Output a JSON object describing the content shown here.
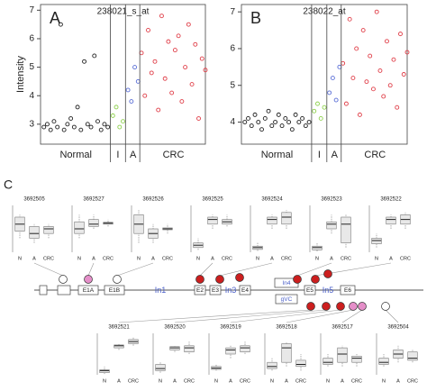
{
  "chart_data": [
    {
      "type": "scatter",
      "panel": "A",
      "title": "238021_s_at",
      "ylabel": "Intensity",
      "xlim": [
        0,
        49
      ],
      "ylim": [
        2.3,
        7.2
      ],
      "yticks": [
        3,
        4,
        5,
        6,
        7
      ],
      "series": [
        {
          "name": "Normal",
          "color": "#222222",
          "x": [
            1,
            2,
            3,
            4,
            5,
            6,
            7,
            8,
            9,
            10,
            11,
            12,
            13,
            14,
            15,
            16,
            17,
            18,
            19,
            20
          ],
          "values": [
            2.9,
            3.0,
            2.8,
            3.1,
            2.9,
            6.5,
            2.8,
            3.0,
            3.2,
            2.9,
            3.6,
            2.8,
            5.2,
            3.0,
            2.9,
            5.4,
            3.1,
            2.8,
            3.0,
            2.9
          ]
        },
        {
          "name": "I",
          "color": "#8fd14f",
          "x": [
            21.5,
            22.5,
            23.5,
            24.5
          ],
          "values": [
            3.3,
            3.6,
            2.9,
            3.1
          ]
        },
        {
          "name": "A",
          "color": "#5b6fd6",
          "x": [
            26,
            27,
            28,
            29
          ],
          "values": [
            4.2,
            3.8,
            5.0,
            4.5
          ]
        },
        {
          "name": "CRC",
          "color": "#e0404a",
          "x": [
            30,
            31,
            32,
            33,
            34,
            35,
            36,
            37,
            38,
            39,
            40,
            41,
            42,
            43,
            44,
            45,
            46,
            47,
            48,
            49
          ],
          "values": [
            5.5,
            4.0,
            6.3,
            4.8,
            5.2,
            3.5,
            6.8,
            4.6,
            5.9,
            4.1,
            5.6,
            6.1,
            3.8,
            5.0,
            6.5,
            4.4,
            5.8,
            3.2,
            5.3,
            4.9
          ]
        }
      ]
    },
    {
      "type": "scatter",
      "panel": "B",
      "title": "238022_at",
      "xlim": [
        0,
        49
      ],
      "ylim": [
        3.4,
        7.2
      ],
      "yticks": [
        4,
        5,
        6,
        7
      ],
      "series": [
        {
          "name": "Normal",
          "color": "#222222",
          "x": [
            1,
            2,
            3,
            4,
            5,
            6,
            7,
            8,
            9,
            10,
            11,
            12,
            13,
            14,
            15,
            16,
            17,
            18,
            19,
            20
          ],
          "values": [
            4.0,
            4.1,
            3.9,
            4.2,
            4.0,
            3.8,
            4.1,
            4.3,
            3.9,
            4.0,
            4.2,
            3.9,
            4.1,
            4.0,
            3.8,
            4.2,
            4.0,
            4.1,
            3.9,
            4.0
          ]
        },
        {
          "name": "I",
          "color": "#8fd14f",
          "x": [
            21.5,
            22.5,
            23.5,
            24.5
          ],
          "values": [
            4.3,
            4.5,
            4.1,
            4.4
          ]
        },
        {
          "name": "A",
          "color": "#5b6fd6",
          "x": [
            26,
            27,
            28,
            29
          ],
          "values": [
            4.8,
            5.2,
            4.6,
            5.5
          ]
        },
        {
          "name": "CRC",
          "color": "#e0404a",
          "x": [
            30,
            31,
            32,
            33,
            34,
            35,
            36,
            37,
            38,
            39,
            40,
            41,
            42,
            43,
            44,
            45,
            46,
            47,
            48,
            49
          ],
          "values": [
            5.6,
            4.5,
            6.8,
            5.2,
            6.0,
            4.2,
            6.5,
            5.1,
            5.8,
            4.9,
            7.0,
            5.4,
            4.7,
            6.2,
            5.0,
            5.7,
            4.4,
            6.4,
            5.3,
            5.9
          ]
        }
      ]
    },
    {
      "type": "box",
      "title": "3692505",
      "categories": [
        "N",
        "A",
        "CRC"
      ],
      "ylim": [
        0,
        10
      ],
      "boxes": [
        [
          3,
          4.5,
          6,
          7.5,
          8
        ],
        [
          2,
          3,
          4,
          5.5,
          6
        ],
        [
          3,
          4,
          5,
          5.5,
          6
        ]
      ]
    },
    {
      "type": "box",
      "title": "3692527",
      "categories": [
        "N",
        "A",
        "CRC"
      ],
      "ylim": [
        0,
        10
      ],
      "boxes": [
        [
          3,
          4,
          5,
          6.5,
          8
        ],
        [
          5,
          5.5,
          6,
          7,
          8
        ],
        [
          5.5,
          6,
          6.2,
          6.4,
          7
        ]
      ]
    },
    {
      "type": "box",
      "title": "3692526",
      "categories": [
        "N",
        "A",
        "CRC"
      ],
      "ylim": [
        0,
        10
      ],
      "boxes": [
        [
          2,
          4,
          6,
          8,
          9
        ],
        [
          2,
          3,
          4,
          5,
          6
        ],
        [
          4,
          4.8,
          5,
          5.2,
          6
        ]
      ]
    },
    {
      "type": "box",
      "title": "3692525",
      "categories": [
        "N",
        "A",
        "CRC"
      ],
      "ylim": [
        0,
        10
      ],
      "boxes": [
        [
          0.5,
          1,
          1.5,
          2,
          3
        ],
        [
          5,
          6,
          7,
          7.5,
          8
        ],
        [
          5.5,
          6,
          6.5,
          7,
          8
        ]
      ]
    },
    {
      "type": "box",
      "title": "3692524",
      "categories": [
        "N",
        "A",
        "CRC"
      ],
      "ylim": [
        0,
        10
      ],
      "boxes": [
        [
          0.3,
          0.6,
          1,
          1.3,
          2
        ],
        [
          5,
          6,
          7,
          7.5,
          8
        ],
        [
          5,
          6,
          7.5,
          8.5,
          9
        ]
      ]
    },
    {
      "type": "box",
      "title": "3692523",
      "categories": [
        "N",
        "A",
        "CRC"
      ],
      "ylim": [
        0,
        10
      ],
      "boxes": [
        [
          0.2,
          0.5,
          1,
          1.3,
          2
        ],
        [
          4,
          5,
          6,
          6.5,
          8
        ],
        [
          1,
          2,
          6,
          7.5,
          8
        ]
      ]
    },
    {
      "type": "box",
      "title": "3692522",
      "categories": [
        "N",
        "A",
        "CRC"
      ],
      "ylim": [
        0,
        10
      ],
      "boxes": [
        [
          1,
          1.8,
          2.5,
          3,
          4
        ],
        [
          5,
          6,
          7,
          7.5,
          8
        ],
        [
          5,
          6,
          7,
          8,
          8.5
        ]
      ]
    },
    {
      "type": "box",
      "title": "3692521",
      "categories": [
        "N",
        "A",
        "CRC"
      ],
      "ylim": [
        0,
        10
      ],
      "boxes": [
        [
          0.2,
          0.5,
          1,
          1.2,
          2
        ],
        [
          6,
          6.5,
          7,
          7.2,
          7.5
        ],
        [
          7,
          7.5,
          8,
          8.5,
          9
        ]
      ]
    },
    {
      "type": "box",
      "title": "3692520",
      "categories": [
        "N",
        "A",
        "CRC"
      ],
      "ylim": [
        0,
        10
      ],
      "boxes": [
        [
          0.5,
          1,
          1.5,
          2.5,
          3
        ],
        [
          5.5,
          6,
          6.5,
          6.8,
          7
        ],
        [
          5,
          5.5,
          6.5,
          7,
          8
        ]
      ]
    },
    {
      "type": "box",
      "title": "3692519",
      "categories": [
        "N",
        "A",
        "CRC"
      ],
      "ylim": [
        0,
        10
      ],
      "boxes": [
        [
          1,
          1.3,
          1.6,
          2,
          2.5
        ],
        [
          4,
          5,
          6,
          6.5,
          7
        ],
        [
          5,
          5.5,
          6.5,
          7,
          8
        ]
      ]
    },
    {
      "type": "box",
      "title": "3692518",
      "categories": [
        "N",
        "A",
        "CRC"
      ],
      "ylim": [
        0,
        10
      ],
      "boxes": [
        [
          1,
          1.5,
          2,
          3,
          4
        ],
        [
          2,
          3,
          6.5,
          7.5,
          8
        ],
        [
          1,
          2,
          2.5,
          3.5,
          5
        ]
      ]
    },
    {
      "type": "box",
      "title": "3692517",
      "categories": [
        "N",
        "A",
        "CRC"
      ],
      "ylim": [
        0,
        10
      ],
      "boxes": [
        [
          2,
          2.5,
          3,
          4,
          5
        ],
        [
          2,
          3,
          5,
          6.5,
          7
        ],
        [
          2,
          3,
          4,
          4.5,
          5
        ]
      ]
    },
    {
      "type": "box",
      "title": "3692504",
      "categories": [
        "N",
        "A",
        "CRC"
      ],
      "ylim": [
        0,
        10
      ],
      "boxes": [
        [
          2,
          2.5,
          3,
          4,
          5
        ],
        [
          3,
          4,
          5,
          6,
          7
        ],
        [
          3,
          3.5,
          4,
          5.5,
          6
        ]
      ]
    }
  ],
  "diagram": {
    "panel": "C",
    "elements": [
      "E1A",
      "E1B",
      "In1",
      "E2",
      "E3",
      "In3",
      "E4",
      "In4",
      "E5",
      "In5",
      "E6",
      "gVC"
    ]
  }
}
